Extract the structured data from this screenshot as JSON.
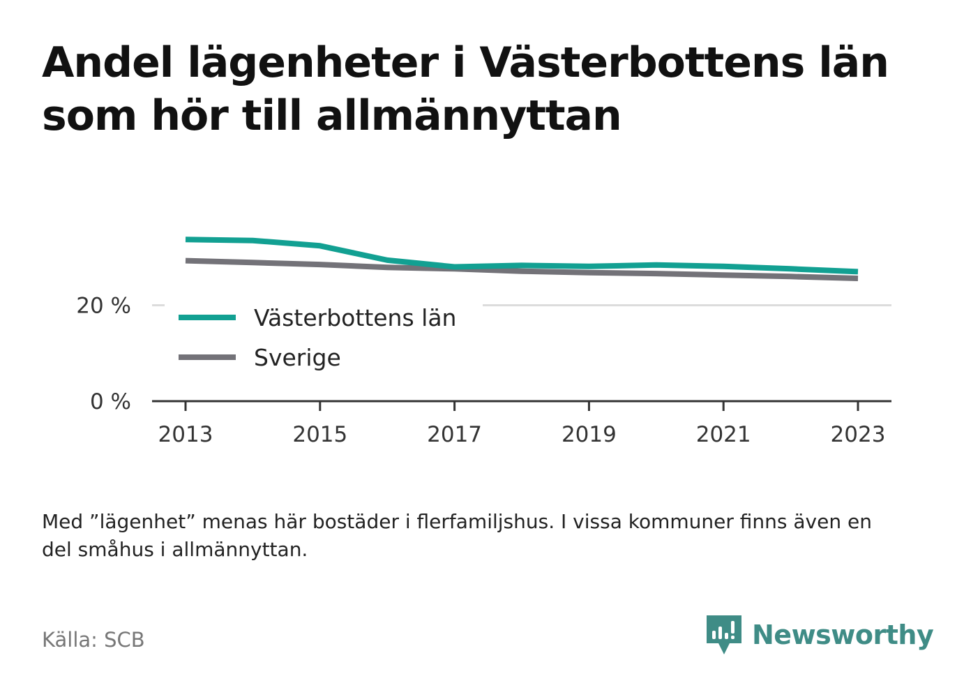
{
  "title": "Andel lägenheter i Västerbottens län som hör till allmännyttan",
  "note": "Med ”lägenhet” menas här bostäder i flerfamiljshus. I vissa kommuner finns även en del småhus i allmännyttan.",
  "source": "Källa: SCB",
  "brand": {
    "name": "Newsworthy",
    "color": "#3f8c86",
    "icon": "newsworthy-logo-icon"
  },
  "chart_data": {
    "type": "line",
    "x": [
      2013,
      2014,
      2015,
      2016,
      2017,
      2018,
      2019,
      2020,
      2021,
      2022,
      2023
    ],
    "series": [
      {
        "name": "Västerbottens län",
        "color": "#12a092",
        "values": [
          33.7,
          33.5,
          32.4,
          29.4,
          28.0,
          28.3,
          28.1,
          28.4,
          28.1,
          27.6,
          27.0
        ]
      },
      {
        "name": "Sverige",
        "color": "#737278",
        "values": [
          29.3,
          28.9,
          28.5,
          27.9,
          27.6,
          27.1,
          26.8,
          26.6,
          26.3,
          26.0,
          25.6
        ]
      }
    ],
    "ylim": [
      0,
      40
    ],
    "yticks": [
      0,
      20
    ],
    "ytick_labels": [
      "0 %",
      "20 %"
    ],
    "xticks": [
      2013,
      2015,
      2017,
      2019,
      2021,
      2023
    ],
    "xtick_labels": [
      "2013",
      "2015",
      "2017",
      "2019",
      "2021",
      "2023"
    ],
    "xlim": [
      2012.5,
      2023.5
    ],
    "grid": true,
    "legend": "bottom-left",
    "xlabel": "",
    "ylabel": ""
  }
}
